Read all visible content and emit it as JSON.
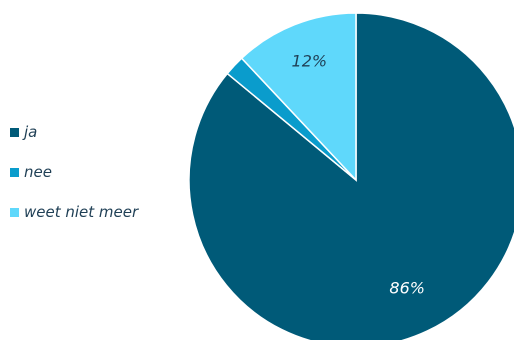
{
  "chart_data": {
    "type": "pie",
    "categories": [
      "ja",
      "nee",
      "weet niet meer"
    ],
    "values": [
      86,
      2,
      12
    ],
    "data_labels": [
      "86%",
      "",
      "12%"
    ],
    "colors": [
      "#005a78",
      "#0a9ccc",
      "#5fd8fb"
    ],
    "label_colors": [
      "#ffffff",
      "#ffffff",
      "#1f3f55"
    ],
    "start_angle": "12 o'clock, clockwise",
    "legend_position": "left"
  }
}
